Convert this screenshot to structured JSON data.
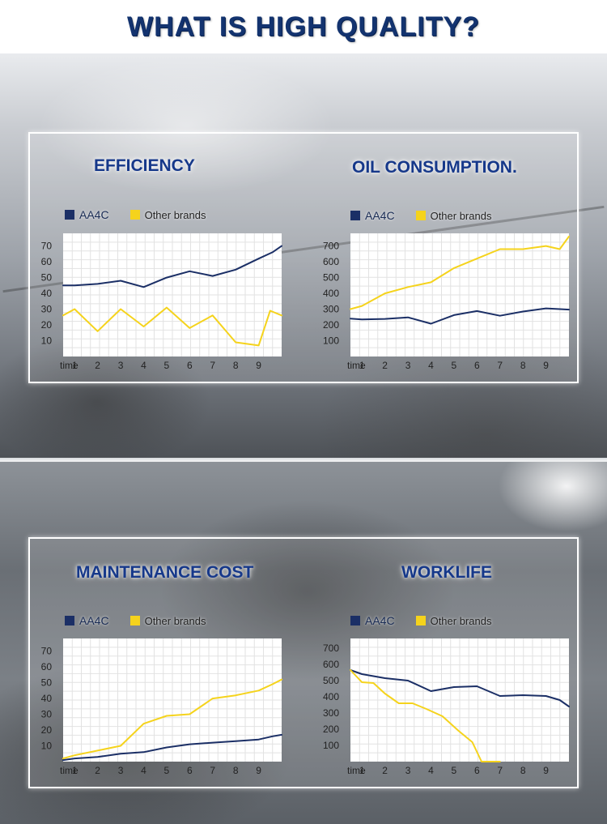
{
  "page": {
    "title": "WHAT IS HIGH QUALITY?"
  },
  "colors": {
    "title_blue": "#13336f",
    "chart_title_blue": "#16388a",
    "aa4c_line": "#1b2f66",
    "other_line": "#f5d31c",
    "grid": "#e2e2e2"
  },
  "legend": {
    "aa4c": "AA4C",
    "other": "Other brands"
  },
  "chart_data": [
    {
      "id": "efficiency",
      "type": "line",
      "title": "EFFICIENCY",
      "x_label_prefix": "time",
      "categories": [
        "1",
        "2",
        "3",
        "4",
        "5",
        "6",
        "7",
        "8",
        "9"
      ],
      "x": [
        0.5,
        1,
        2,
        3,
        4,
        5,
        6,
        7,
        8,
        9,
        10
      ],
      "y_ticks": [
        10,
        20,
        30,
        40,
        50,
        60,
        70
      ],
      "ylim": [
        0,
        78
      ],
      "xlim": [
        0.5,
        10
      ],
      "grid": true,
      "legend_position": "top-left",
      "series": [
        {
          "name": "AA4C",
          "color": "#1b2f66",
          "values": [
            45,
            45,
            46,
            48,
            44,
            50,
            54,
            51,
            55,
            62,
            66,
            70
          ],
          "x": [
            0.5,
            1,
            2,
            3,
            4,
            5,
            6,
            7,
            8,
            9,
            9.6,
            10.1
          ]
        },
        {
          "name": "Other brands",
          "color": "#f5d31c",
          "values": [
            26,
            30,
            16,
            30,
            19,
            31,
            18,
            26,
            9,
            7,
            29,
            26
          ],
          "x": [
            0.5,
            1,
            2,
            3,
            4,
            5,
            6,
            7,
            8,
            9,
            9.5,
            10.1
          ]
        }
      ]
    },
    {
      "id": "oil",
      "type": "line",
      "title": "OIL CONSUMPTION.",
      "x_label_prefix": "time",
      "categories": [
        "1",
        "2",
        "3",
        "4",
        "5",
        "6",
        "7",
        "8",
        "9"
      ],
      "y_ticks": [
        100,
        200,
        300,
        400,
        500,
        600,
        700
      ],
      "ylim": [
        0,
        780
      ],
      "xlim": [
        0.5,
        10
      ],
      "grid": true,
      "legend_position": "top-left",
      "series": [
        {
          "name": "AA4C",
          "color": "#1b2f66",
          "values": [
            240,
            235,
            238,
            248,
            208,
            262,
            288,
            258,
            285,
            305,
            300,
            297
          ],
          "x": [
            0.5,
            1,
            2,
            3,
            4,
            5,
            6,
            7,
            8,
            9,
            9.6,
            10.1
          ]
        },
        {
          "name": "Other brands",
          "color": "#f5d31c",
          "values": [
            300,
            320,
            400,
            440,
            470,
            560,
            620,
            680,
            680,
            700,
            680,
            760
          ],
          "x": [
            0.5,
            1,
            2,
            3,
            4,
            5,
            6,
            7,
            8,
            9,
            9.6,
            10.1
          ]
        }
      ]
    },
    {
      "id": "maintenance",
      "type": "line",
      "title": "MAINTENANCE COST",
      "x_label_prefix": "time",
      "categories": [
        "1",
        "2",
        "3",
        "4",
        "5",
        "6",
        "7",
        "8",
        "9"
      ],
      "y_ticks": [
        10,
        20,
        30,
        40,
        50,
        60,
        70
      ],
      "ylim": [
        0,
        78
      ],
      "xlim": [
        0.5,
        10
      ],
      "grid": true,
      "legend_position": "top-left",
      "series": [
        {
          "name": "AA4C",
          "color": "#1b2f66",
          "values": [
            1,
            2,
            3,
            5,
            6,
            9,
            11,
            12,
            13,
            14,
            16,
            17
          ],
          "x": [
            0.5,
            1,
            2,
            3,
            4,
            5,
            6,
            7,
            8,
            9,
            9.6,
            10.1
          ]
        },
        {
          "name": "Other brands",
          "color": "#f5d31c",
          "values": [
            2,
            4,
            7,
            10,
            24,
            29,
            30,
            40,
            42,
            45,
            49,
            52
          ],
          "x": [
            0.5,
            1,
            2,
            3,
            4,
            5,
            6,
            7,
            8,
            9,
            9.6,
            10.1
          ]
        }
      ]
    },
    {
      "id": "worklife",
      "type": "line",
      "title": "WORKLIFE",
      "x_label_prefix": "time",
      "categories": [
        "1",
        "2",
        "3",
        "4",
        "5",
        "6",
        "7",
        "8",
        "9"
      ],
      "y_ticks": [
        100,
        200,
        300,
        400,
        500,
        600,
        700
      ],
      "ylim": [
        0,
        760
      ],
      "xlim": [
        0.5,
        10
      ],
      "grid": true,
      "legend_position": "top-left",
      "series": [
        {
          "name": "AA4C",
          "color": "#1b2f66",
          "values": [
            565,
            540,
            515,
            500,
            435,
            460,
            465,
            405,
            410,
            405,
            380,
            340
          ],
          "x": [
            0.5,
            1,
            2,
            3,
            4,
            5,
            6,
            7,
            8,
            9,
            9.6,
            10.1
          ]
        },
        {
          "name": "Other brands",
          "color": "#f5d31c",
          "values": [
            565,
            490,
            485,
            420,
            360,
            360,
            325,
            280,
            190,
            120,
            0,
            0
          ],
          "x": [
            0.5,
            1,
            1.5,
            2,
            2.6,
            3.2,
            3.8,
            4.5,
            5.2,
            5.8,
            6.2,
            7
          ]
        }
      ]
    }
  ]
}
